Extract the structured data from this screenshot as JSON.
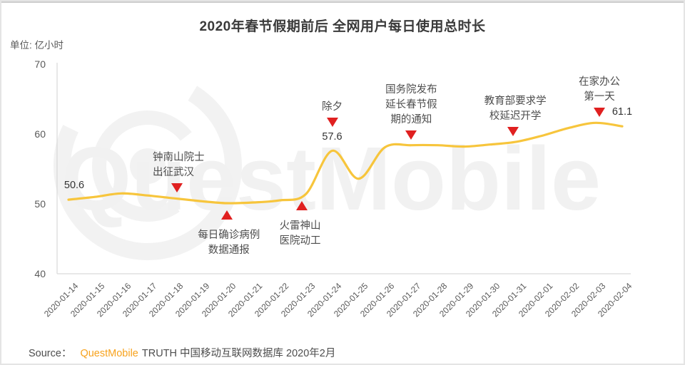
{
  "page": {
    "unit_label": "单位: 亿小时"
  },
  "watermark": {
    "text": "QuestMobile"
  },
  "source": {
    "prefix": "Source：",
    "brand": "QuestMobile",
    "suffix": "TRUTH 中国移动互联网数据库 2020年2月"
  },
  "chart_data": {
    "type": "line",
    "title": "2020年春节假期前后 全网用户每日使用总时长",
    "unit": "亿小时",
    "x": [
      "2020-01-14",
      "2020-01-15",
      "2020-01-16",
      "2020-01-17",
      "2020-01-18",
      "2020-01-19",
      "2020-01-20",
      "2020-01-21",
      "2020-01-22",
      "2020-01-23",
      "2020-01-24",
      "2020-01-25",
      "2020-01-26",
      "2020-01-27",
      "2020-01-28",
      "2020-01-29",
      "2020-01-30",
      "2020-01-31",
      "2020-02-01",
      "2020-02-02",
      "2020-02-03",
      "2020-02-04"
    ],
    "values": [
      50.6,
      51.0,
      51.5,
      51.2,
      50.8,
      50.4,
      50.1,
      50.2,
      50.5,
      51.4,
      57.6,
      53.6,
      58.1,
      58.4,
      58.4,
      58.2,
      58.5,
      58.9,
      59.8,
      60.9,
      61.6,
      61.1
    ],
    "ylim": [
      40,
      70
    ],
    "yticks": [
      40,
      50,
      60,
      70
    ],
    "grid": false,
    "legend": "none",
    "line_color": "#F7C53C",
    "marker_color": "#E02020",
    "axis_color": "#D9D9D9",
    "point_labels": [
      {
        "date": "2020-01-14",
        "value": "50.6"
      },
      {
        "date": "2020-01-24",
        "value": "57.6"
      },
      {
        "date": "2020-02-04",
        "value": "61.1"
      }
    ],
    "annotations": [
      {
        "date": "2020-01-18",
        "lines": [
          "钟南山院士",
          "出征武汉"
        ],
        "marker": "down",
        "position": "above"
      },
      {
        "date": "2020-01-20",
        "lines": [
          "每日确诊病例",
          "数据通报"
        ],
        "marker": "up",
        "position": "below"
      },
      {
        "date": "2020-01-23",
        "lines": [
          "火雷神山",
          "医院动工"
        ],
        "marker": "up",
        "position": "below"
      },
      {
        "date": "2020-01-24",
        "lines": [
          "除夕"
        ],
        "marker": "down",
        "position": "above"
      },
      {
        "date": "2020-01-27",
        "lines": [
          "国务院发布",
          "延长春节假",
          "期的通知"
        ],
        "marker": "down",
        "position": "above"
      },
      {
        "date": "2020-01-31",
        "lines": [
          "教育部要求学",
          "校延迟开学"
        ],
        "marker": "down",
        "position": "above"
      },
      {
        "date": "2020-02-03",
        "lines": [
          "在家办公",
          "第一天"
        ],
        "marker": "down",
        "position": "above"
      }
    ]
  }
}
